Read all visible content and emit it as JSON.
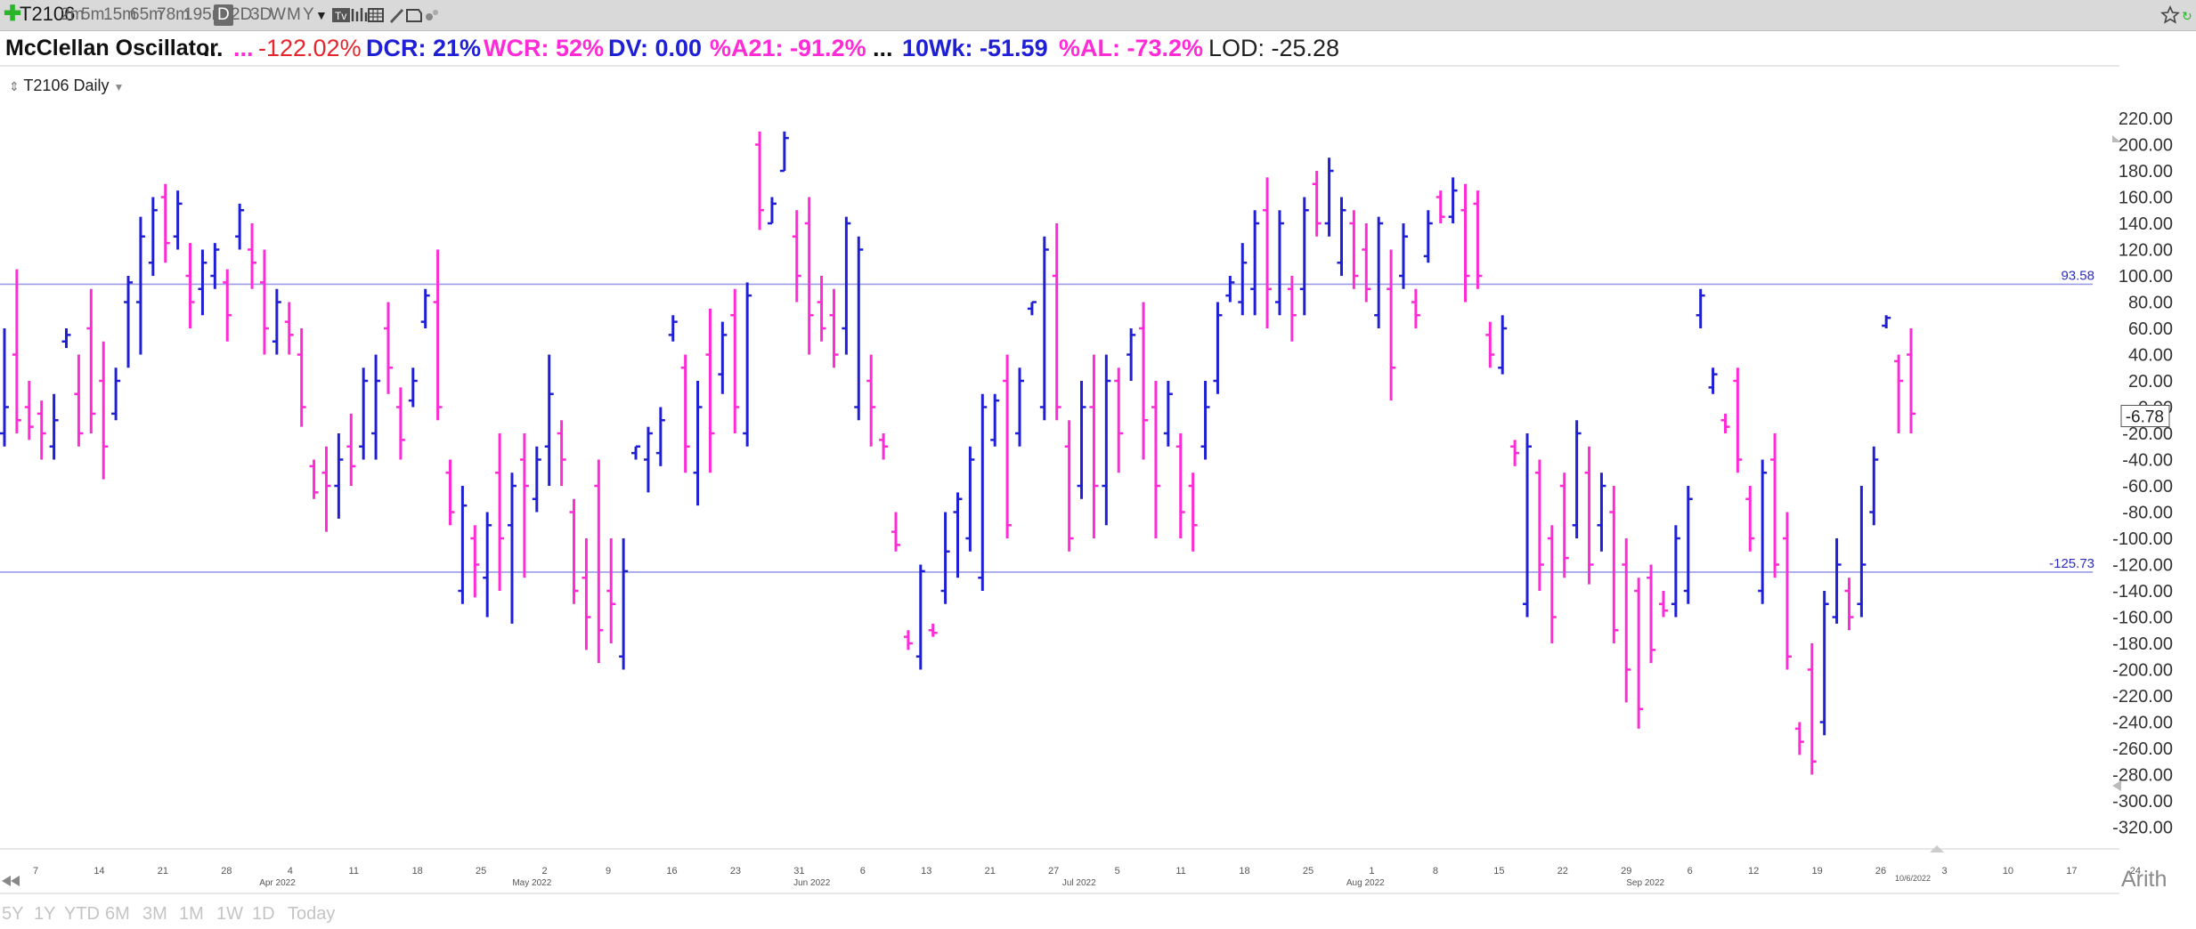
{
  "toolbar": {
    "symbol": "T2106",
    "intervals": [
      "2m",
      "5m",
      "15m",
      "65m",
      "78m",
      "195m",
      "D",
      "2D",
      "3D",
      "W",
      "M",
      "Y"
    ],
    "active_interval": "D"
  },
  "statusline": {
    "name": "McClellan Oscillator",
    "dots1": "...",
    "dots2": "...",
    "pct": "-122.02%",
    "dcr": "DCR: 21%",
    "wcr": "WCR: 52%",
    "dv": "DV: 0.00",
    "a21": "%A21: -91.2%",
    "dots3": "...",
    "wk10": "10Wk: -51.59",
    "al": "%AL: -73.2%",
    "lod": "LOD: -25.28"
  },
  "subtitle": "T2106 Daily",
  "bottom": {
    "ranges": [
      "5Y",
      "1Y",
      "YTD",
      "6M",
      "3M",
      "1M",
      "1W",
      "1D",
      "Today"
    ],
    "scale": "Arith"
  },
  "colors": {
    "up": "#1f1fd6",
    "down": "#ff2bd6",
    "hline": "#9b9be6",
    "axis_text": "#333333"
  },
  "chart_data": {
    "type": "ohlc",
    "y_ticks": [
      220,
      200,
      180,
      160,
      140,
      120,
      100,
      80,
      60,
      40,
      20,
      0,
      -20,
      -40,
      -60,
      -80,
      -100,
      -120,
      -140,
      -160,
      -180,
      -200,
      -220,
      -240,
      -260,
      -280,
      -300,
      -320
    ],
    "ylim": [
      -330,
      232
    ],
    "hlines": [
      {
        "value": 93.58,
        "label": "93.58"
      },
      {
        "value": -125.73,
        "label": "-125.73"
      }
    ],
    "last_value": {
      "value": -6.78,
      "label": "-6.78"
    },
    "x_day_ticks": [
      "7",
      "14",
      "21",
      "28",
      "4",
      "11",
      "18",
      "25",
      "2",
      "9",
      "16",
      "23",
      "31",
      "6",
      "13",
      "21",
      "27",
      "5",
      "11",
      "18",
      "25",
      "1",
      "8",
      "15",
      "22",
      "29",
      "6",
      "12",
      "19",
      "26",
      "3",
      "10",
      "17",
      "24"
    ],
    "x_month_labels": [
      "Apr 2022",
      "May 2022",
      "Jun 2022",
      "Jul 2022",
      "Aug 2022",
      "Sep 2022"
    ],
    "last_date_label": "10/6/2022",
    "bars": [
      {
        "d": "up",
        "h": 60,
        "l": -30,
        "o": -20,
        "c": 0
      },
      {
        "d": "down",
        "h": 105,
        "l": -20,
        "o": 40,
        "c": -10
      },
      {
        "d": "down",
        "h": 20,
        "l": -25,
        "o": 0,
        "c": -15
      },
      {
        "d": "down",
        "h": 5,
        "l": -40,
        "o": -5,
        "c": -20
      },
      {
        "d": "up",
        "h": 10,
        "l": -40,
        "o": -30,
        "c": -10
      },
      {
        "d": "up",
        "h": 60,
        "l": 45,
        "o": 50,
        "c": 55
      },
      {
        "d": "down",
        "h": 40,
        "l": -30,
        "o": 10,
        "c": -20
      },
      {
        "d": "down",
        "h": 90,
        "l": -20,
        "o": 60,
        "c": -5
      },
      {
        "d": "down",
        "h": 50,
        "l": -55,
        "o": 20,
        "c": -30
      },
      {
        "d": "up",
        "h": 30,
        "l": -10,
        "o": -5,
        "c": 20
      },
      {
        "d": "up",
        "h": 100,
        "l": 30,
        "o": 80,
        "c": 95
      },
      {
        "d": "up",
        "h": 145,
        "l": 40,
        "o": 80,
        "c": 130
      },
      {
        "d": "up",
        "h": 160,
        "l": 100,
        "o": 110,
        "c": 150
      },
      {
        "d": "down",
        "h": 170,
        "l": 110,
        "o": 160,
        "c": 125
      },
      {
        "d": "up",
        "h": 165,
        "l": 120,
        "o": 130,
        "c": 155
      },
      {
        "d": "down",
        "h": 125,
        "l": 60,
        "o": 100,
        "c": 80
      },
      {
        "d": "up",
        "h": 120,
        "l": 70,
        "o": 90,
        "c": 110
      },
      {
        "d": "up",
        "h": 125,
        "l": 90,
        "o": 100,
        "c": 120
      },
      {
        "d": "down",
        "h": 105,
        "l": 50,
        "o": 95,
        "c": 70
      },
      {
        "d": "up",
        "h": 155,
        "l": 120,
        "o": 130,
        "c": 150
      },
      {
        "d": "down",
        "h": 140,
        "l": 90,
        "o": 120,
        "c": 110
      },
      {
        "d": "down",
        "h": 120,
        "l": 40,
        "o": 95,
        "c": 60
      },
      {
        "d": "up",
        "h": 90,
        "l": 40,
        "o": 50,
        "c": 80
      },
      {
        "d": "down",
        "h": 80,
        "l": 40,
        "o": 65,
        "c": 55
      },
      {
        "d": "down",
        "h": 60,
        "l": -15,
        "o": 40,
        "c": 0
      },
      {
        "d": "down",
        "h": -40,
        "l": -70,
        "o": -45,
        "c": -65
      },
      {
        "d": "down",
        "h": -30,
        "l": -95,
        "o": -50,
        "c": -60
      },
      {
        "d": "up",
        "h": -20,
        "l": -85,
        "o": -60,
        "c": -40
      },
      {
        "d": "down",
        "h": -5,
        "l": -60,
        "o": -30,
        "c": -45
      },
      {
        "d": "up",
        "h": 30,
        "l": -40,
        "o": -30,
        "c": 20
      },
      {
        "d": "up",
        "h": 40,
        "l": -40,
        "o": -20,
        "c": 20
      },
      {
        "d": "down",
        "h": 80,
        "l": 10,
        "o": 60,
        "c": 30
      },
      {
        "d": "down",
        "h": 15,
        "l": -40,
        "o": 0,
        "c": -25
      },
      {
        "d": "up",
        "h": 30,
        "l": 0,
        "o": 5,
        "c": 20
      },
      {
        "d": "up",
        "h": 90,
        "l": 60,
        "o": 65,
        "c": 85
      },
      {
        "d": "down",
        "h": 120,
        "l": -10,
        "o": 80,
        "c": 0
      },
      {
        "d": "down",
        "h": -40,
        "l": -90,
        "o": -50,
        "c": -80
      },
      {
        "d": "up",
        "h": -60,
        "l": -150,
        "o": -140,
        "c": -75
      },
      {
        "d": "down",
        "h": -90,
        "l": -145,
        "o": -100,
        "c": -120
      },
      {
        "d": "up",
        "h": -80,
        "l": -160,
        "o": -130,
        "c": -90
      },
      {
        "d": "down",
        "h": -20,
        "l": -140,
        "o": -50,
        "c": -100
      },
      {
        "d": "up",
        "h": -50,
        "l": -165,
        "o": -90,
        "c": -60
      },
      {
        "d": "down",
        "h": -20,
        "l": -130,
        "o": -40,
        "c": -60
      },
      {
        "d": "up",
        "h": -30,
        "l": -80,
        "o": -70,
        "c": -40
      },
      {
        "d": "up",
        "h": 40,
        "l": -60,
        "o": -30,
        "c": 10
      },
      {
        "d": "down",
        "h": -10,
        "l": -60,
        "o": -20,
        "c": -40
      },
      {
        "d": "down",
        "h": -70,
        "l": -150,
        "o": -80,
        "c": -140
      },
      {
        "d": "down",
        "h": -100,
        "l": -185,
        "o": -130,
        "c": -160
      },
      {
        "d": "down",
        "h": -40,
        "l": -195,
        "o": -60,
        "c": -170
      },
      {
        "d": "down",
        "h": -100,
        "l": -180,
        "o": -140,
        "c": -150
      },
      {
        "d": "up",
        "h": -100,
        "l": -200,
        "o": -190,
        "c": -125
      },
      {
        "d": "up",
        "h": -30,
        "l": -40,
        "o": -35,
        "c": -30
      },
      {
        "d": "up",
        "h": -15,
        "l": -65,
        "o": -40,
        "c": -20
      },
      {
        "d": "up",
        "h": 0,
        "l": -45,
        "o": -35,
        "c": -10
      },
      {
        "d": "up",
        "h": 70,
        "l": 50,
        "o": 55,
        "c": 65
      },
      {
        "d": "down",
        "h": 40,
        "l": -50,
        "o": 30,
        "c": -30
      },
      {
        "d": "up",
        "h": 20,
        "l": -75,
        "o": -50,
        "c": 0
      },
      {
        "d": "down",
        "h": 75,
        "l": -50,
        "o": 40,
        "c": -20
      },
      {
        "d": "up",
        "h": 65,
        "l": 10,
        "o": 25,
        "c": 55
      },
      {
        "d": "down",
        "h": 90,
        "l": -20,
        "o": 70,
        "c": 0
      },
      {
        "d": "up",
        "h": 95,
        "l": -30,
        "o": -20,
        "c": 85
      },
      {
        "d": "down",
        "h": 210,
        "l": 135,
        "o": 200,
        "c": 150
      },
      {
        "d": "up",
        "h": 160,
        "l": 140,
        "o": 140,
        "c": 155
      },
      {
        "d": "up",
        "h": 210,
        "l": 180,
        "o": 180,
        "c": 205
      },
      {
        "d": "down",
        "h": 150,
        "l": 80,
        "o": 130,
        "c": 100
      },
      {
        "d": "down",
        "h": 160,
        "l": 40,
        "o": 140,
        "c": 70
      },
      {
        "d": "down",
        "h": 100,
        "l": 50,
        "o": 80,
        "c": 60
      },
      {
        "d": "down",
        "h": 90,
        "l": 30,
        "o": 70,
        "c": 40
      },
      {
        "d": "up",
        "h": 145,
        "l": 40,
        "o": 60,
        "c": 140
      },
      {
        "d": "up",
        "h": 130,
        "l": -10,
        "o": 0,
        "c": 120
      },
      {
        "d": "down",
        "h": 40,
        "l": -30,
        "o": 20,
        "c": 0
      },
      {
        "d": "down",
        "h": -20,
        "l": -40,
        "o": -25,
        "c": -30
      },
      {
        "d": "down",
        "h": -80,
        "l": -110,
        "o": -95,
        "c": -105
      },
      {
        "d": "down",
        "h": -170,
        "l": -185,
        "o": -175,
        "c": -180
      },
      {
        "d": "up",
        "h": -120,
        "l": -200,
        "o": -190,
        "c": -125
      },
      {
        "d": "down",
        "h": -165,
        "l": -175,
        "o": -170,
        "c": -172
      },
      {
        "d": "up",
        "h": -80,
        "l": -150,
        "o": -140,
        "c": -110
      },
      {
        "d": "up",
        "h": -65,
        "l": -130,
        "o": -80,
        "c": -70
      },
      {
        "d": "up",
        "h": -30,
        "l": -110,
        "o": -100,
        "c": -40
      },
      {
        "d": "up",
        "h": 10,
        "l": -140,
        "o": -130,
        "c": 0
      },
      {
        "d": "up",
        "h": 10,
        "l": -30,
        "o": -25,
        "c": 5
      },
      {
        "d": "down",
        "h": 40,
        "l": -100,
        "o": 20,
        "c": -90
      },
      {
        "d": "up",
        "h": 30,
        "l": -30,
        "o": -20,
        "c": 20
      },
      {
        "d": "up",
        "h": 80,
        "l": 70,
        "o": 75,
        "c": 80
      },
      {
        "d": "up",
        "h": 130,
        "l": -10,
        "o": 0,
        "c": 120
      },
      {
        "d": "down",
        "h": 140,
        "l": -10,
        "o": 100,
        "c": 0
      },
      {
        "d": "down",
        "h": -10,
        "l": -110,
        "o": -30,
        "c": -100
      },
      {
        "d": "up",
        "h": 20,
        "l": -70,
        "o": -60,
        "c": 0
      },
      {
        "d": "down",
        "h": 40,
        "l": -100,
        "o": 0,
        "c": -60
      },
      {
        "d": "up",
        "h": 40,
        "l": -90,
        "o": -60,
        "c": 20
      },
      {
        "d": "down",
        "h": 30,
        "l": -50,
        "o": 20,
        "c": -20
      },
      {
        "d": "up",
        "h": 60,
        "l": 20,
        "o": 40,
        "c": 55
      },
      {
        "d": "down",
        "h": 80,
        "l": -40,
        "o": 60,
        "c": -10
      },
      {
        "d": "down",
        "h": 20,
        "l": -100,
        "o": 0,
        "c": -60
      },
      {
        "d": "up",
        "h": 20,
        "l": -30,
        "o": -20,
        "c": 10
      },
      {
        "d": "down",
        "h": -20,
        "l": -100,
        "o": -30,
        "c": -80
      },
      {
        "d": "down",
        "h": -50,
        "l": -110,
        "o": -60,
        "c": -90
      },
      {
        "d": "up",
        "h": 20,
        "l": -40,
        "o": -30,
        "c": 0
      },
      {
        "d": "up",
        "h": 80,
        "l": 10,
        "o": 20,
        "c": 70
      },
      {
        "d": "up",
        "h": 100,
        "l": 80,
        "o": 85,
        "c": 95
      },
      {
        "d": "up",
        "h": 125,
        "l": 70,
        "o": 80,
        "c": 110
      },
      {
        "d": "up",
        "h": 150,
        "l": 70,
        "o": 90,
        "c": 140
      },
      {
        "d": "down",
        "h": 175,
        "l": 60,
        "o": 150,
        "c": 90
      },
      {
        "d": "up",
        "h": 150,
        "l": 70,
        "o": 80,
        "c": 140
      },
      {
        "d": "down",
        "h": 100,
        "l": 50,
        "o": 90,
        "c": 70
      },
      {
        "d": "up",
        "h": 160,
        "l": 70,
        "o": 90,
        "c": 150
      },
      {
        "d": "down",
        "h": 180,
        "l": 130,
        "o": 170,
        "c": 140
      },
      {
        "d": "up",
        "h": 190,
        "l": 130,
        "o": 140,
        "c": 180
      },
      {
        "d": "up",
        "h": 160,
        "l": 100,
        "o": 110,
        "c": 150
      },
      {
        "d": "down",
        "h": 150,
        "l": 90,
        "o": 140,
        "c": 100
      },
      {
        "d": "down",
        "h": 140,
        "l": 80,
        "o": 120,
        "c": 90
      },
      {
        "d": "up",
        "h": 145,
        "l": 60,
        "o": 70,
        "c": 140
      },
      {
        "d": "down",
        "h": 120,
        "l": 5,
        "o": 90,
        "c": 30
      },
      {
        "d": "up",
        "h": 140,
        "l": 90,
        "o": 100,
        "c": 130
      },
      {
        "d": "down",
        "h": 90,
        "l": 60,
        "o": 80,
        "c": 70
      },
      {
        "d": "up",
        "h": 150,
        "l": 110,
        "o": 115,
        "c": 140
      },
      {
        "d": "down",
        "h": 165,
        "l": 140,
        "o": 160,
        "c": 145
      },
      {
        "d": "up",
        "h": 175,
        "l": 140,
        "o": 145,
        "c": 165
      },
      {
        "d": "down",
        "h": 170,
        "l": 80,
        "o": 150,
        "c": 100
      },
      {
        "d": "down",
        "h": 165,
        "l": 90,
        "o": 155,
        "c": 100
      },
      {
        "d": "down",
        "h": 65,
        "l": 30,
        "o": 55,
        "c": 40
      },
      {
        "d": "up",
        "h": 70,
        "l": 25,
        "o": 30,
        "c": 60
      },
      {
        "d": "down",
        "h": -25,
        "l": -45,
        "o": -30,
        "c": -35
      },
      {
        "d": "up",
        "h": -20,
        "l": -160,
        "o": -150,
        "c": -30
      },
      {
        "d": "down",
        "h": -40,
        "l": -140,
        "o": -50,
        "c": -120
      },
      {
        "d": "down",
        "h": -90,
        "l": -180,
        "o": -100,
        "c": -160
      },
      {
        "d": "down",
        "h": -50,
        "l": -130,
        "o": -60,
        "c": -115
      },
      {
        "d": "up",
        "h": -10,
        "l": -100,
        "o": -90,
        "c": -20
      },
      {
        "d": "down",
        "h": -30,
        "l": -135,
        "o": -50,
        "c": -120
      },
      {
        "d": "up",
        "h": -50,
        "l": -110,
        "o": -90,
        "c": -60
      },
      {
        "d": "down",
        "h": -60,
        "l": -180,
        "o": -80,
        "c": -170
      },
      {
        "d": "down",
        "h": -100,
        "l": -225,
        "o": -120,
        "c": -200
      },
      {
        "d": "down",
        "h": -130,
        "l": -245,
        "o": -140,
        "c": -230
      },
      {
        "d": "down",
        "h": -120,
        "l": -195,
        "o": -130,
        "c": -185
      },
      {
        "d": "down",
        "h": -140,
        "l": -160,
        "o": -150,
        "c": -155
      },
      {
        "d": "up",
        "h": -90,
        "l": -160,
        "o": -150,
        "c": -100
      },
      {
        "d": "up",
        "h": -60,
        "l": -150,
        "o": -140,
        "c": -70
      },
      {
        "d": "up",
        "h": 90,
        "l": 60,
        "o": 70,
        "c": 85
      },
      {
        "d": "up",
        "h": 30,
        "l": 10,
        "o": 15,
        "c": 25
      },
      {
        "d": "down",
        "h": -5,
        "l": -20,
        "o": -10,
        "c": -15
      },
      {
        "d": "down",
        "h": 30,
        "l": -50,
        "o": 20,
        "c": -40
      },
      {
        "d": "down",
        "h": -60,
        "l": -110,
        "o": -70,
        "c": -100
      },
      {
        "d": "up",
        "h": -40,
        "l": -150,
        "o": -140,
        "c": -50
      },
      {
        "d": "down",
        "h": -20,
        "l": -130,
        "o": -40,
        "c": -120
      },
      {
        "d": "down",
        "h": -80,
        "l": -200,
        "o": -100,
        "c": -190
      },
      {
        "d": "down",
        "h": -240,
        "l": -265,
        "o": -245,
        "c": -255
      },
      {
        "d": "down",
        "h": -180,
        "l": -280,
        "o": -200,
        "c": -270
      },
      {
        "d": "up",
        "h": -140,
        "l": -250,
        "o": -240,
        "c": -150
      },
      {
        "d": "up",
        "h": -100,
        "l": -165,
        "o": -160,
        "c": -120
      },
      {
        "d": "down",
        "h": -130,
        "l": -170,
        "o": -140,
        "c": -160
      },
      {
        "d": "up",
        "h": -60,
        "l": -160,
        "o": -150,
        "c": -120
      },
      {
        "d": "up",
        "h": -30,
        "l": -90,
        "o": -80,
        "c": -40
      },
      {
        "d": "up",
        "h": 70,
        "l": 60,
        "o": 62,
        "c": 68
      },
      {
        "d": "down",
        "h": 40,
        "l": -20,
        "o": 35,
        "c": 20
      },
      {
        "d": "down",
        "h": 60,
        "l": -20,
        "o": 40,
        "c": -5
      }
    ]
  }
}
